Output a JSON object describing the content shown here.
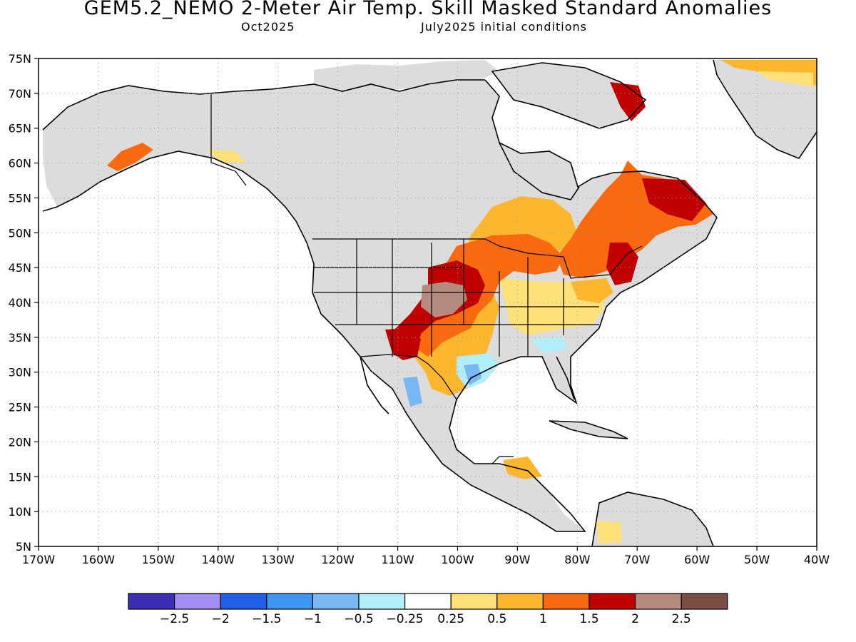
{
  "title": "GEM5.2_NEMO 2-Meter Air Temp. Skill Masked Standard Anomalies",
  "subtitle_left": "Oct2025",
  "subtitle_right": "July2025 initial conditions",
  "map": {
    "lon_range": [
      -170,
      -40
    ],
    "lat_range": [
      5,
      75
    ],
    "lon_labels": [
      "170W",
      "160W",
      "150W",
      "140W",
      "130W",
      "120W",
      "110W",
      "100W",
      "90W",
      "80W",
      "70W",
      "60W",
      "50W",
      "40W"
    ],
    "lat_labels": [
      "75N",
      "70N",
      "65N",
      "60N",
      "55N",
      "50N",
      "45N",
      "40N",
      "35N",
      "30N",
      "25N",
      "20N",
      "15N",
      "10N",
      "5N"
    ],
    "grid": true,
    "mask_color": "#dcdcdc"
  },
  "colorbar": {
    "colors": [
      "#3b2db4",
      "#a48ef2",
      "#2060e8",
      "#3e95f2",
      "#78b8f5",
      "#b3effa",
      "#ffffff",
      "#ffe17a",
      "#fdb72e",
      "#f96a10",
      "#c00000",
      "#b58b80",
      "#7a4e45"
    ],
    "labels": [
      "-2.5",
      "-2",
      "-1.5",
      "-1",
      "-0.5",
      "-0.25",
      "0.25",
      "0.5",
      "1",
      "1.5",
      "2",
      "2.5"
    ]
  },
  "icons": {
    "map": "north-america-map"
  }
}
